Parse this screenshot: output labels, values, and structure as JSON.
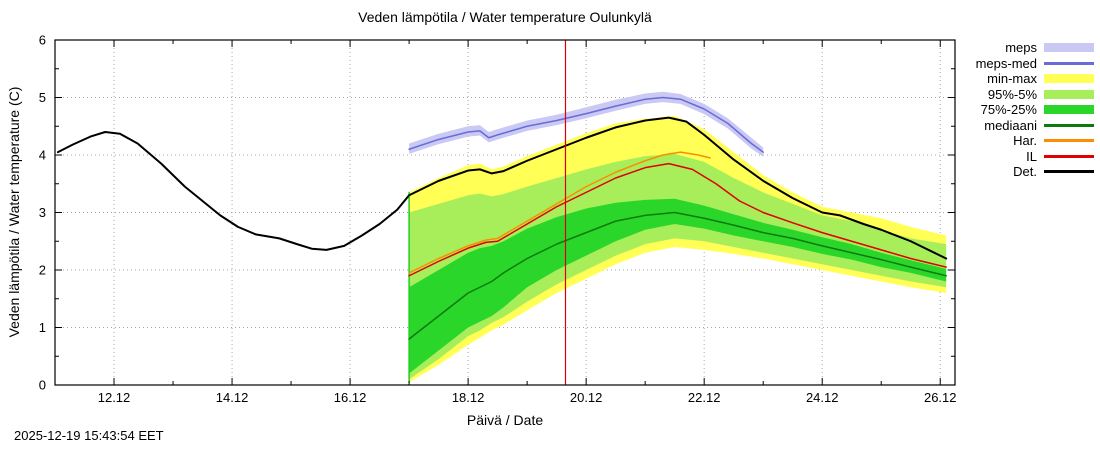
{
  "page": {
    "timestamp": "2025-12-19 15:43:54 EET"
  },
  "chart_data": {
    "type": "line",
    "title": "Veden lämpötila / Water temperature Oulunkylä",
    "xlabel": "Päivä / Date",
    "ylabel": "Veden lämpötila / Water temperature (C)",
    "xlim": [
      11.0,
      26.25
    ],
    "ylim": [
      0,
      6
    ],
    "grid": true,
    "legend_position": "outside-right-top",
    "x_ticks": [
      {
        "v": 12,
        "label": "12.12"
      },
      {
        "v": 14,
        "label": "14.12"
      },
      {
        "v": 16,
        "label": "16.12"
      },
      {
        "v": 18,
        "label": "18.12"
      },
      {
        "v": 20,
        "label": "20.12"
      },
      {
        "v": 22,
        "label": "22.12"
      },
      {
        "v": 24,
        "label": "24.12"
      },
      {
        "v": 26,
        "label": "26.12"
      }
    ],
    "x_minor_ticks": [
      13,
      15,
      17,
      19,
      21,
      23,
      25
    ],
    "y_ticks": [
      {
        "v": 0,
        "label": "0"
      },
      {
        "v": 1,
        "label": "1"
      },
      {
        "v": 2,
        "label": "2"
      },
      {
        "v": 3,
        "label": "3"
      },
      {
        "v": 4,
        "label": "4"
      },
      {
        "v": 5,
        "label": "5"
      },
      {
        "v": 6,
        "label": "6"
      }
    ],
    "y_minor_ticks": [
      0.5,
      1.5,
      2.5,
      3.5,
      4.5,
      5.5
    ],
    "now_line": {
      "x": 19.65,
      "color": "#dd0000"
    },
    "bands": [
      {
        "name": "min-max",
        "color": "#ffff55",
        "x": [
          17.0,
          17.5,
          18.0,
          18.2,
          18.4,
          18.6,
          19.0,
          19.5,
          20.0,
          20.5,
          21.0,
          21.5,
          22.0,
          22.5,
          23.0,
          23.5,
          24.0,
          24.5,
          25.0,
          25.5,
          26.1
        ],
        "hi": [
          3.35,
          3.6,
          3.82,
          3.85,
          3.75,
          3.8,
          3.98,
          4.18,
          4.38,
          4.55,
          4.63,
          4.68,
          4.45,
          4.05,
          3.65,
          3.35,
          3.1,
          3.0,
          2.9,
          2.75,
          2.6
        ],
        "lo": [
          0.05,
          0.35,
          0.7,
          0.82,
          0.95,
          1.05,
          1.3,
          1.6,
          1.85,
          2.1,
          2.3,
          2.4,
          2.35,
          2.28,
          2.2,
          2.1,
          2.0,
          1.9,
          1.8,
          1.7,
          1.6
        ]
      },
      {
        "name": "95%-5%",
        "color": "#a8ee5a",
        "x": [
          17.0,
          17.5,
          18.0,
          18.2,
          18.4,
          18.6,
          19.0,
          19.5,
          20.0,
          20.5,
          21.0,
          21.5,
          22.0,
          22.5,
          23.0,
          23.5,
          24.0,
          24.5,
          25.0,
          25.5,
          26.1
        ],
        "hi": [
          3.0,
          3.15,
          3.3,
          3.33,
          3.28,
          3.32,
          3.45,
          3.6,
          3.75,
          3.88,
          3.98,
          4.02,
          3.88,
          3.6,
          3.35,
          3.15,
          2.95,
          2.85,
          2.7,
          2.55,
          2.45
        ],
        "lo": [
          0.1,
          0.45,
          0.85,
          0.95,
          1.08,
          1.18,
          1.45,
          1.75,
          2.0,
          2.25,
          2.45,
          2.55,
          2.5,
          2.4,
          2.3,
          2.2,
          2.1,
          2.0,
          1.9,
          1.8,
          1.7
        ]
      },
      {
        "name": "75%-25%",
        "color": "#2bd62b",
        "x": [
          17.0,
          17.5,
          18.0,
          18.2,
          18.4,
          18.6,
          19.0,
          19.5,
          20.0,
          20.5,
          21.0,
          21.5,
          22.0,
          22.5,
          23.0,
          23.5,
          24.0,
          24.5,
          25.0,
          25.5,
          26.1
        ],
        "hi": [
          1.7,
          2.0,
          2.3,
          2.38,
          2.42,
          2.5,
          2.72,
          2.92,
          3.07,
          3.17,
          3.22,
          3.24,
          3.12,
          2.97,
          2.82,
          2.7,
          2.57,
          2.45,
          2.3,
          2.17,
          2.02
        ],
        "lo": [
          0.2,
          0.6,
          1.0,
          1.1,
          1.2,
          1.35,
          1.7,
          2.0,
          2.25,
          2.5,
          2.7,
          2.8,
          2.72,
          2.6,
          2.5,
          2.4,
          2.28,
          2.18,
          2.05,
          1.95,
          1.8
        ]
      },
      {
        "name": "meps",
        "color": "#c9c9f4",
        "x": [
          17.0,
          17.5,
          18.0,
          18.2,
          18.35,
          18.5,
          19.0,
          19.5,
          20.0,
          20.5,
          21.0,
          21.3,
          21.6,
          22.0,
          22.4,
          22.8,
          23.0
        ],
        "hi": [
          4.2,
          4.37,
          4.5,
          4.52,
          4.4,
          4.45,
          4.6,
          4.7,
          4.83,
          4.96,
          5.07,
          5.1,
          5.06,
          4.89,
          4.64,
          4.3,
          4.13
        ],
        "lo": [
          4.02,
          4.19,
          4.32,
          4.34,
          4.22,
          4.27,
          4.42,
          4.52,
          4.64,
          4.77,
          4.89,
          4.92,
          4.89,
          4.71,
          4.46,
          4.11,
          3.97
        ]
      }
    ],
    "lines": [
      {
        "name": "forecast-start",
        "color": "#22cc22",
        "width": 1.5,
        "x": [
          17.0,
          17.0
        ],
        "y": [
          0.05,
          3.35
        ]
      },
      {
        "name": "mediaani",
        "color": "#0e7a0e",
        "width": 1.5,
        "x": [
          17.0,
          17.5,
          18.0,
          18.2,
          18.4,
          18.6,
          19.0,
          19.5,
          20.0,
          20.5,
          21.0,
          21.5,
          22.0,
          22.5,
          23.0,
          23.5,
          24.0,
          24.5,
          25.0,
          25.5,
          26.1
        ],
        "y": [
          0.8,
          1.2,
          1.6,
          1.7,
          1.8,
          1.95,
          2.2,
          2.45,
          2.65,
          2.85,
          2.95,
          3.0,
          2.9,
          2.78,
          2.65,
          2.55,
          2.42,
          2.3,
          2.18,
          2.05,
          1.9
        ]
      },
      {
        "name": "Har.",
        "color": "#ff8c00",
        "width": 1.5,
        "x": [
          17.0,
          17.5,
          18.0,
          18.3,
          18.5,
          19.0,
          19.5,
          20.0,
          20.5,
          21.0,
          21.3,
          21.6,
          21.9,
          22.1
        ],
        "y": [
          1.95,
          2.2,
          2.42,
          2.52,
          2.55,
          2.85,
          3.15,
          3.45,
          3.7,
          3.9,
          4.0,
          4.05,
          4.0,
          3.95
        ]
      },
      {
        "name": "IL",
        "color": "#e00000",
        "width": 1.5,
        "x": [
          17.0,
          17.5,
          18.0,
          18.3,
          18.5,
          19.0,
          19.5,
          20.0,
          20.5,
          21.0,
          21.4,
          21.8,
          22.2,
          22.6,
          23.0,
          23.5,
          24.0,
          24.5,
          25.0,
          25.5,
          26.1
        ],
        "y": [
          1.9,
          2.15,
          2.38,
          2.48,
          2.5,
          2.8,
          3.1,
          3.35,
          3.6,
          3.78,
          3.85,
          3.75,
          3.5,
          3.2,
          3.0,
          2.82,
          2.65,
          2.5,
          2.35,
          2.2,
          2.05
        ]
      },
      {
        "name": "Det.",
        "color": "#000000",
        "width": 2,
        "x": [
          11.05,
          11.3,
          11.6,
          11.85,
          12.1,
          12.4,
          12.8,
          13.2,
          13.5,
          13.8,
          14.1,
          14.4,
          14.8,
          15.1,
          15.35,
          15.6,
          15.9,
          16.2,
          16.5,
          16.8,
          17.0,
          17.5,
          18.0,
          18.2,
          18.4,
          18.6,
          19.0,
          19.5,
          20.0,
          20.5,
          21.0,
          21.4,
          21.7,
          22.0,
          22.5,
          23.0,
          23.5,
          24.0,
          24.3,
          24.7,
          25.0,
          25.5,
          26.1
        ],
        "y": [
          4.05,
          4.18,
          4.32,
          4.4,
          4.37,
          4.2,
          3.85,
          3.45,
          3.2,
          2.95,
          2.75,
          2.62,
          2.55,
          2.45,
          2.37,
          2.35,
          2.42,
          2.6,
          2.8,
          3.05,
          3.3,
          3.55,
          3.73,
          3.75,
          3.68,
          3.72,
          3.9,
          4.1,
          4.3,
          4.48,
          4.6,
          4.65,
          4.58,
          4.35,
          3.92,
          3.55,
          3.25,
          3.0,
          2.95,
          2.8,
          2.7,
          2.5,
          2.2
        ]
      },
      {
        "name": "meps-med",
        "color": "#6a6ad8",
        "width": 1.5,
        "x": [
          17.0,
          17.5,
          18.0,
          18.2,
          18.35,
          18.5,
          19.0,
          19.5,
          20.0,
          20.5,
          21.0,
          21.3,
          21.6,
          22.0,
          22.4,
          22.8,
          23.0
        ],
        "y": [
          4.1,
          4.27,
          4.4,
          4.42,
          4.3,
          4.35,
          4.5,
          4.6,
          4.72,
          4.85,
          4.97,
          5.0,
          4.97,
          4.8,
          4.55,
          4.2,
          4.05
        ]
      }
    ],
    "legend": [
      {
        "label": "meps",
        "type": "band",
        "color": "#c9c9f4"
      },
      {
        "label": "meps-med",
        "type": "line",
        "color": "#6a6ad8"
      },
      {
        "label": "min-max",
        "type": "band",
        "color": "#ffff55"
      },
      {
        "label": "95%-5%",
        "type": "band",
        "color": "#a8ee5a"
      },
      {
        "label": "75%-25%",
        "type": "band",
        "color": "#2bd62b"
      },
      {
        "label": "mediaani",
        "type": "line",
        "color": "#0e7a0e"
      },
      {
        "label": "Har.",
        "type": "line",
        "color": "#ff8c00"
      },
      {
        "label": "IL",
        "type": "line",
        "color": "#e00000"
      },
      {
        "label": "Det.",
        "type": "line",
        "color": "#000000"
      }
    ]
  }
}
